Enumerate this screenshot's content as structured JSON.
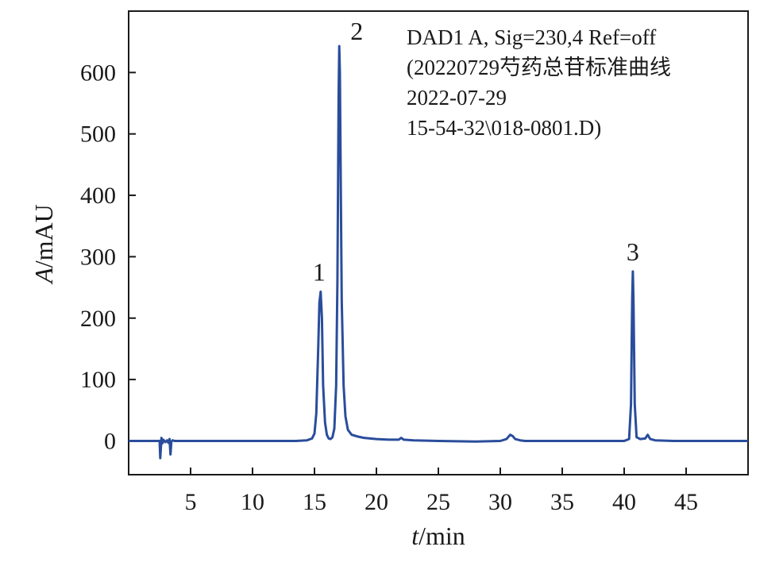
{
  "chart_data": {
    "type": "line",
    "title": "",
    "xlabel_italic": "t",
    "xlabel_rest": "/min",
    "ylabel_italic": "A",
    "ylabel_rest": "/mAU",
    "xlim": [
      0,
      50
    ],
    "ylim": [
      -55,
      700
    ],
    "x_ticks": [
      5,
      10,
      15,
      20,
      25,
      30,
      35,
      40,
      45
    ],
    "y_ticks": [
      0,
      100,
      200,
      300,
      400,
      500,
      600
    ],
    "grid": false,
    "legend": "none",
    "line_color": "#2a4d9b",
    "info_text": [
      "DAD1 A, Sig=230,4 Ref=off",
      "(20220729芍药总苷标准曲线",
      "2022-07-29",
      "15-54-32\\018-0801.D)"
    ],
    "peaks": [
      {
        "label": "1",
        "x": 15.5,
        "y": 243
      },
      {
        "label": "2",
        "x": 17.0,
        "y": 643
      },
      {
        "label": "3",
        "x": 40.7,
        "y": 276
      }
    ],
    "series": [
      {
        "values_x": [
          0.0,
          2.5,
          2.55,
          2.65,
          2.72,
          2.8,
          2.95,
          3.1,
          3.2,
          3.3,
          3.38,
          3.45,
          3.55,
          3.7,
          5.0,
          9.0,
          13.5,
          14.4,
          14.8,
          15.0,
          15.15,
          15.3,
          15.4,
          15.5,
          15.6,
          15.7,
          15.85,
          16.0,
          16.15,
          16.3,
          16.45,
          16.6,
          16.75,
          16.85,
          16.95,
          17.0,
          17.05,
          17.12,
          17.2,
          17.35,
          17.5,
          17.7,
          18.0,
          18.5,
          19.0,
          20.0,
          21.0,
          21.8,
          22.0,
          22.2,
          23.0,
          25.0,
          28.0,
          30.0,
          30.5,
          30.8,
          31.0,
          31.2,
          31.6,
          32.0,
          35.0,
          38.0,
          40.0,
          40.4,
          40.55,
          40.65,
          40.7,
          40.75,
          40.85,
          41.0,
          41.3,
          41.7,
          41.9,
          42.1,
          42.5,
          44.0,
          46.0,
          48.0,
          50.0
        ],
        "values_y": [
          0,
          0,
          -28,
          5,
          -4,
          2,
          -2,
          1,
          -3,
          3,
          -22,
          -1,
          1,
          0,
          0,
          0,
          0,
          1,
          4,
          12,
          45,
          150,
          225,
          243,
          200,
          90,
          30,
          10,
          4,
          3,
          6,
          20,
          90,
          260,
          560,
          643,
          600,
          420,
          230,
          90,
          40,
          18,
          10,
          7,
          5,
          3,
          2,
          2,
          5,
          2,
          1,
          0,
          -1,
          0,
          3,
          10,
          8,
          3,
          1,
          0,
          0,
          0,
          0,
          3,
          60,
          230,
          276,
          230,
          60,
          6,
          3,
          4,
          10,
          3,
          1,
          0,
          0,
          0,
          0
        ]
      }
    ]
  }
}
